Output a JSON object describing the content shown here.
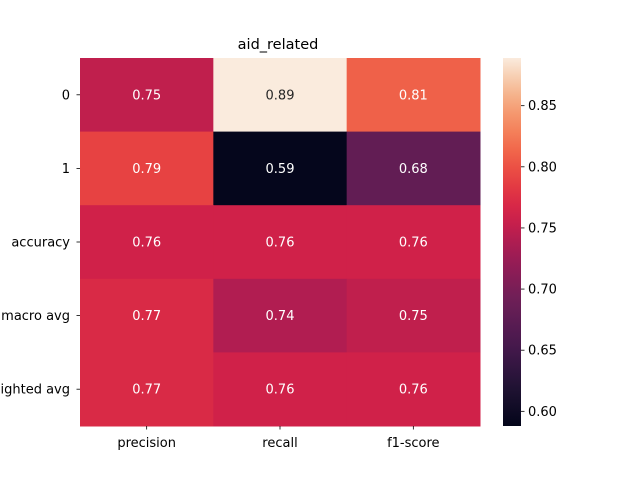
{
  "chart_data": {
    "type": "heatmap",
    "title": "aid_related",
    "xlabel": "",
    "ylabel": "",
    "x_categories": [
      "precision",
      "recall",
      "f1-score"
    ],
    "y_categories": [
      "0",
      "1",
      "accuracy",
      "macro avg",
      "weighted avg"
    ],
    "values": [
      [
        0.75,
        0.89,
        0.81
      ],
      [
        0.79,
        0.59,
        0.68
      ],
      [
        0.76,
        0.76,
        0.76
      ],
      [
        0.77,
        0.74,
        0.75
      ],
      [
        0.77,
        0.76,
        0.76
      ]
    ],
    "colorbar": {
      "vmin": 0.588,
      "vmax": 0.889,
      "ticks": [
        0.6,
        0.65,
        0.7,
        0.75,
        0.8,
        0.85
      ],
      "tick_labels": [
        "0.60",
        "0.65",
        "0.70",
        "0.75",
        "0.80",
        "0.85"
      ],
      "colormap": "rocket"
    },
    "grid": false,
    "legend": "colorbar-right"
  }
}
